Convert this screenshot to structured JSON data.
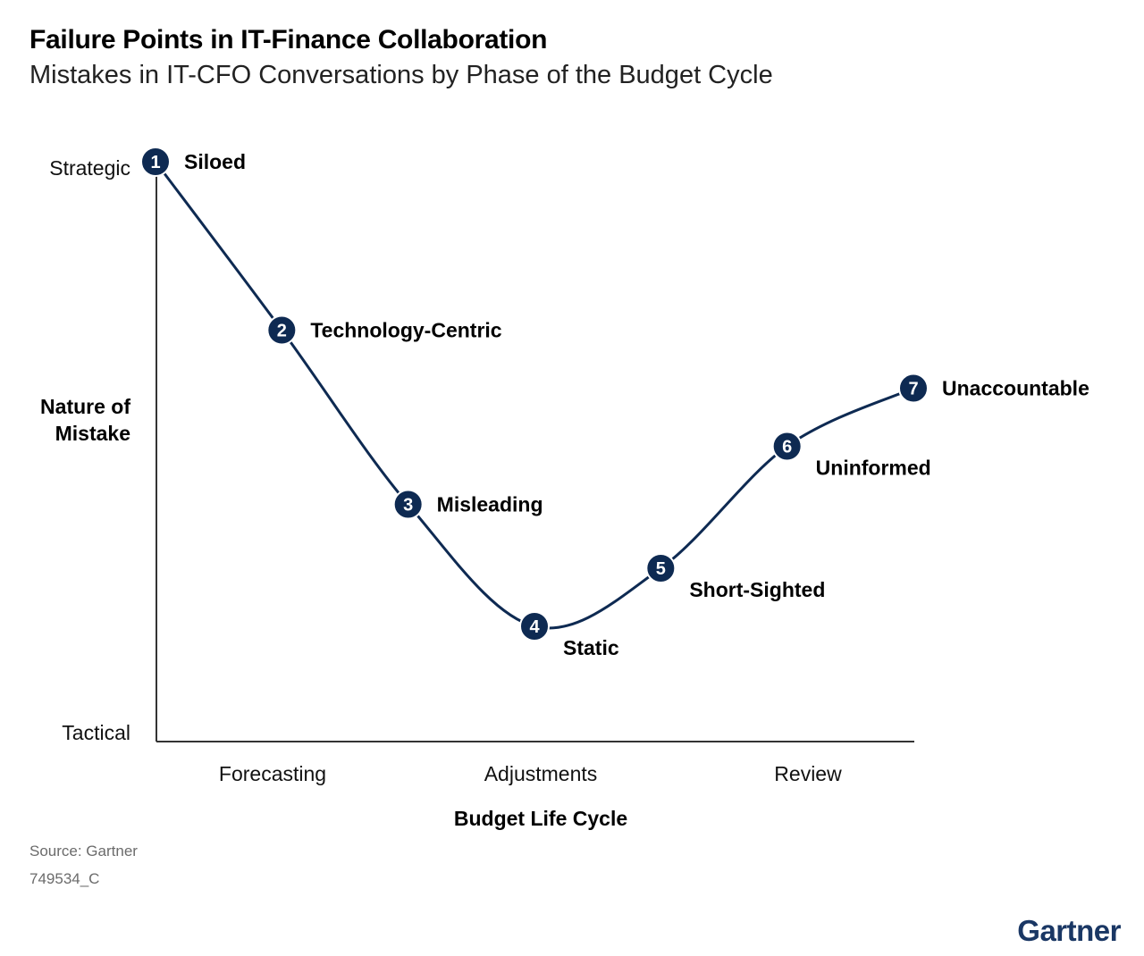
{
  "title": "Failure Points in IT-Finance Collaboration",
  "subtitle": "Mistakes in IT-CFO Conversations by Phase of the Budget Cycle",
  "source": "Source: Gartner",
  "doc_id": "749534_C",
  "brand": "Gartner",
  "colors": {
    "line": "#0e2a52",
    "marker": "#0e2a52",
    "marker_text": "#ffffff",
    "axis": "#333333"
  },
  "chart_data": {
    "type": "line",
    "title": "Failure Points in IT-Finance Collaboration",
    "subtitle": "Mistakes in IT-CFO Conversations by Phase of the Budget Cycle",
    "xlabel": "Budget Life Cycle",
    "ylabel": "Nature of Mistake",
    "x_ticks": [
      "Forecasting",
      "Adjustments",
      "Review"
    ],
    "y_ticks": [
      "Strategic",
      "Tactical"
    ],
    "xlim": [
      0,
      6
    ],
    "ylim": [
      0,
      1
    ],
    "grid": false,
    "series": [
      {
        "points": [
          {
            "id": "1",
            "label": "Siloed",
            "x": 0.0,
            "y": 1.0
          },
          {
            "id": "2",
            "label": "Technology-Centric",
            "x": 1.0,
            "y": 0.71
          },
          {
            "id": "3",
            "label": "Misleading",
            "x": 2.0,
            "y": 0.41
          },
          {
            "id": "4",
            "label": "Static",
            "x": 3.0,
            "y": 0.2
          },
          {
            "id": "5",
            "label": "Short-Sighted",
            "x": 4.0,
            "y": 0.3
          },
          {
            "id": "6",
            "label": "Uninformed",
            "x": 5.0,
            "y": 0.51
          },
          {
            "id": "7",
            "label": "Unaccountable",
            "x": 6.0,
            "y": 0.61
          }
        ]
      }
    ]
  }
}
